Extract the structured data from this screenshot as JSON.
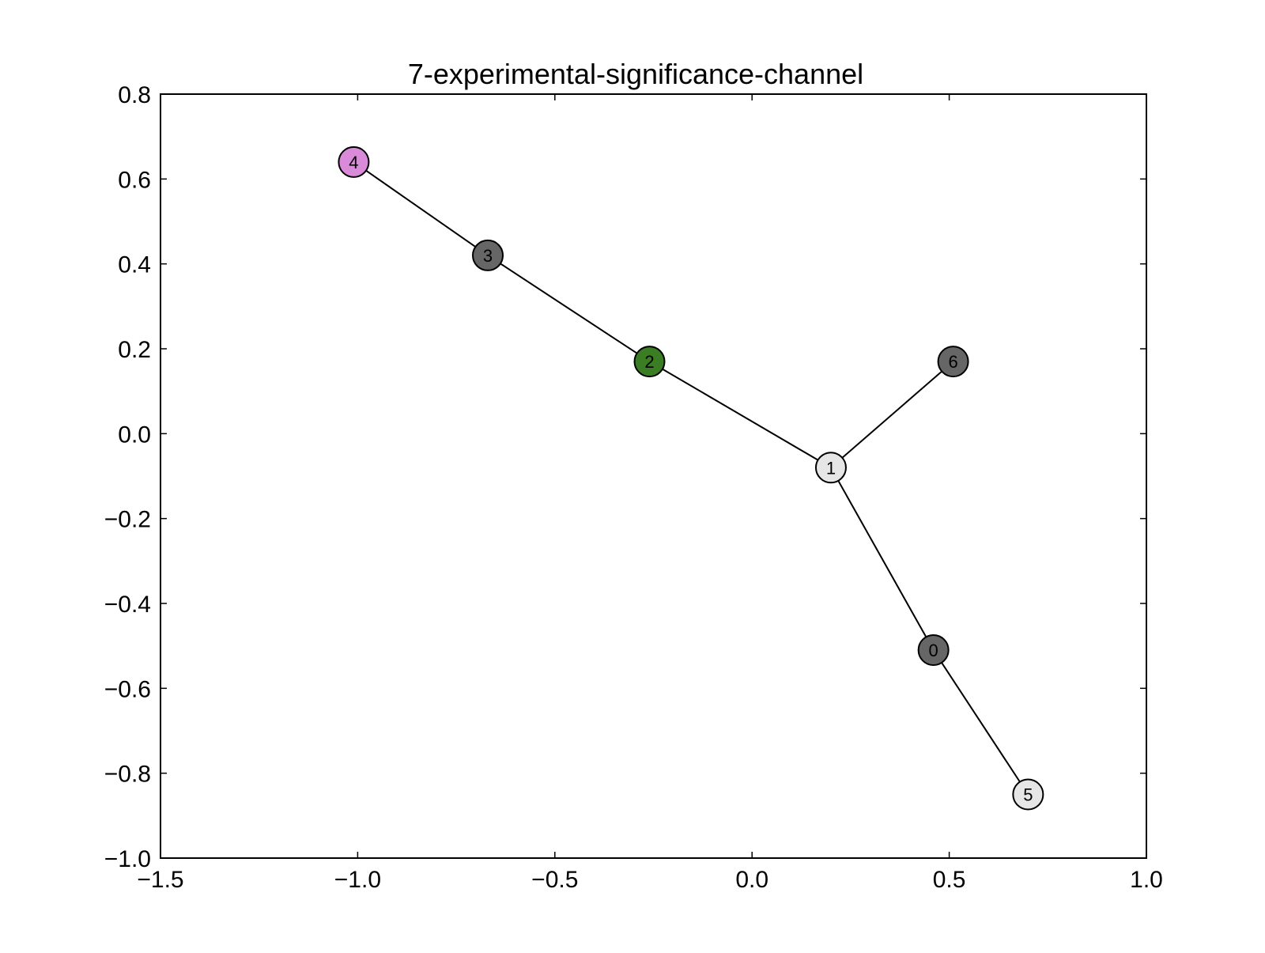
{
  "chart_data": {
    "type": "scatter",
    "title": "7-experimental-significance-channel",
    "xlabel": "",
    "ylabel": "",
    "xlim": [
      -1.5,
      1.0
    ],
    "ylim": [
      -1.0,
      0.8
    ],
    "grid": false,
    "x_ticks": [
      -1.5,
      -1.0,
      -0.5,
      0.0,
      0.5,
      1.0
    ],
    "x_tick_labels": [
      "−1.5",
      "−1.0",
      "−0.5",
      "0.0",
      "0.5",
      "1.0"
    ],
    "y_ticks": [
      -1.0,
      -0.8,
      -0.6,
      -0.4,
      -0.2,
      0.0,
      0.2,
      0.4,
      0.6,
      0.8
    ],
    "y_tick_labels": [
      "−1.0",
      "−0.8",
      "−0.6",
      "−0.4",
      "−0.2",
      "0.0",
      "0.2",
      "0.4",
      "0.6",
      "0.8"
    ],
    "nodes": [
      {
        "id": "0",
        "x": 0.46,
        "y": -0.51,
        "color": "#666666"
      },
      {
        "id": "1",
        "x": 0.2,
        "y": -0.08,
        "color": "#e6e6e6"
      },
      {
        "id": "2",
        "x": -0.26,
        "y": 0.17,
        "color": "#3a7d22"
      },
      {
        "id": "3",
        "x": -0.67,
        "y": 0.42,
        "color": "#666666"
      },
      {
        "id": "4",
        "x": -1.01,
        "y": 0.64,
        "color": "#d98ad9"
      },
      {
        "id": "5",
        "x": 0.7,
        "y": -0.85,
        "color": "#e6e6e6"
      },
      {
        "id": "6",
        "x": 0.51,
        "y": 0.17,
        "color": "#666666"
      }
    ],
    "edges": [
      [
        "4",
        "3"
      ],
      [
        "3",
        "2"
      ],
      [
        "2",
        "1"
      ],
      [
        "1",
        "6"
      ],
      [
        "1",
        "0"
      ],
      [
        "0",
        "5"
      ]
    ]
  }
}
